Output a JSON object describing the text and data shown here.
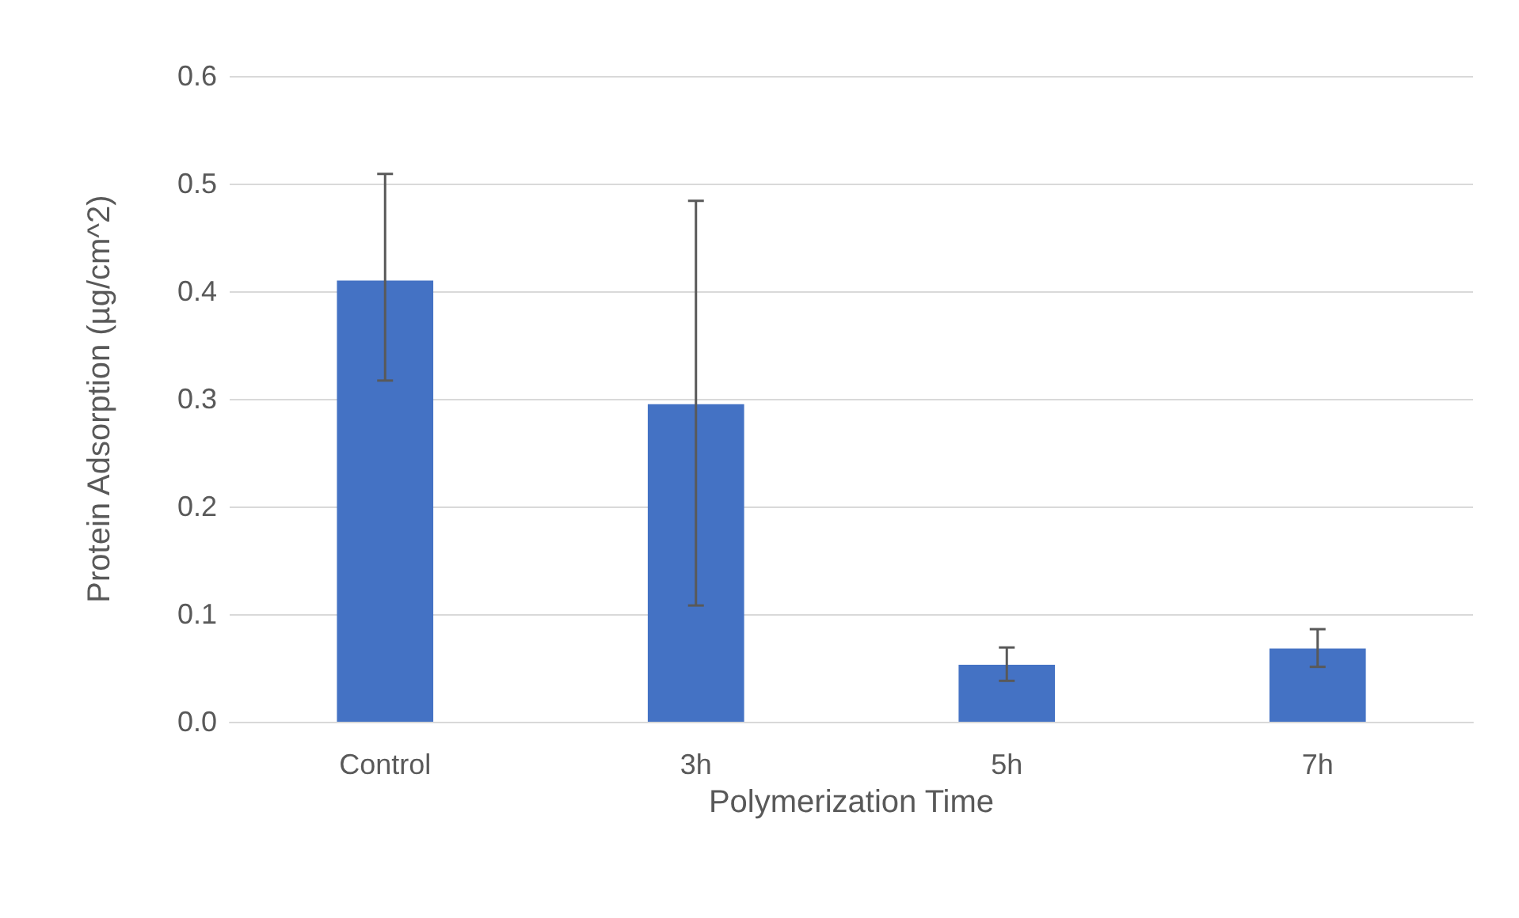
{
  "chart_data": {
    "type": "bar",
    "xlabel": "Polymerization Time",
    "ylabel": "Protein Adsorption (µg/cm^2)",
    "categories": [
      "Control",
      "3h",
      "5h",
      "7h"
    ],
    "values": [
      0.41,
      0.295,
      0.053,
      0.068
    ],
    "errors": [
      [
        0.317,
        0.509
      ],
      [
        0.108,
        0.484
      ],
      [
        0.038,
        0.069
      ],
      [
        0.051,
        0.086
      ]
    ],
    "color": "#4472c4",
    "ylim": [
      0,
      0.6
    ],
    "yticks": [
      {
        "value": 0,
        "label": "0.0"
      },
      {
        "value": 0.1,
        "label": "0.1"
      },
      {
        "value": 0.2,
        "label": "0.2"
      },
      {
        "value": 0.3,
        "label": "0.3"
      },
      {
        "value": 0.4,
        "label": "0.4"
      },
      {
        "value": 0.5,
        "label": "0.5"
      },
      {
        "value": 0.6,
        "label": "0.6"
      }
    ],
    "grid": "y"
  }
}
